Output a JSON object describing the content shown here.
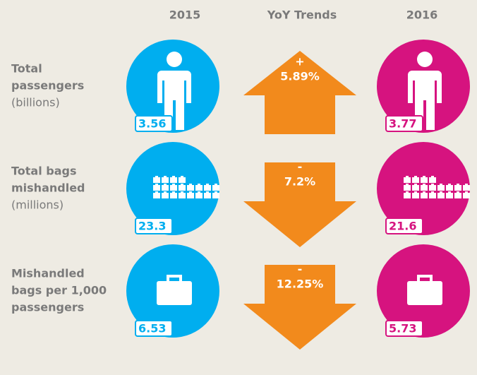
{
  "header": {
    "col_2015": "2015",
    "col_trend": "YoY Trends",
    "col_2016": "2016"
  },
  "rows": [
    {
      "label": [
        "Total",
        "passengers"
      ],
      "unit": "(billions)",
      "value_2015": "3.56",
      "value_2016": "3.77",
      "trend_sign": "+",
      "trend": "5.89%"
    },
    {
      "label": [
        "Total bags",
        "mishandled"
      ],
      "unit": "(millions)",
      "value_2015": "23.3",
      "value_2016": "21.6",
      "trend_sign": "-",
      "trend": "7.2%"
    },
    {
      "label": [
        "Mishandled",
        "bags per 1,000",
        "passengers"
      ],
      "value_2015": "6.53",
      "value_2016": "5.73",
      "trend_sign": "-",
      "trend": "12.25%"
    }
  ]
}
